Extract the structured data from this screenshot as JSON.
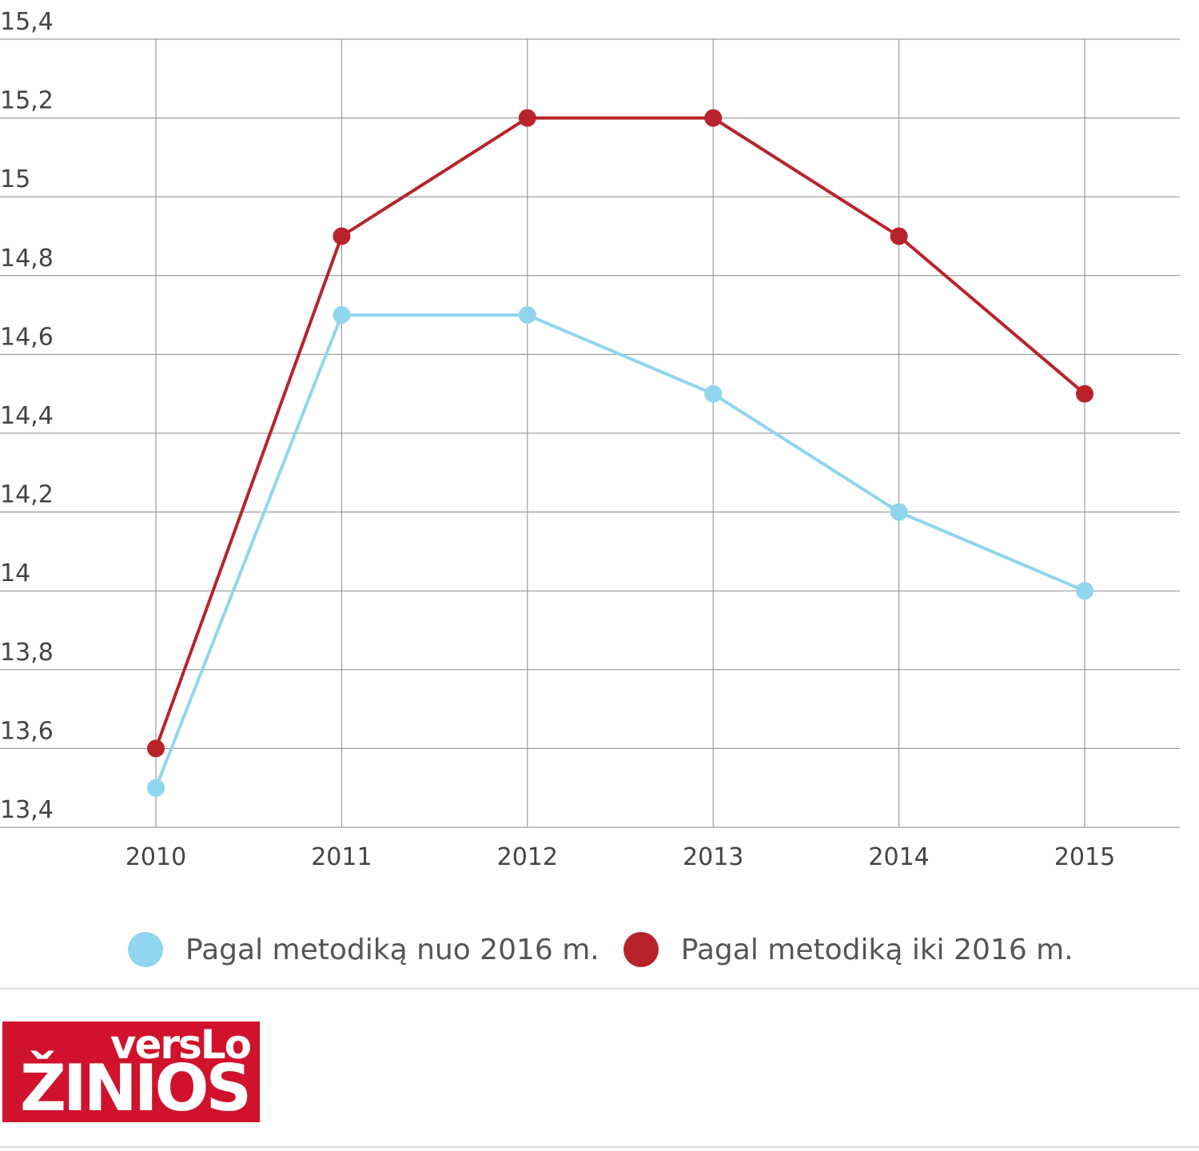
{
  "chart_data": {
    "type": "line",
    "categories": [
      "2010",
      "2011",
      "2012",
      "2013",
      "2014",
      "2015"
    ],
    "series": [
      {
        "name": "Pagal metodiką nuo 2016 m.",
        "color": "#8fd6ee",
        "values": [
          13.5,
          14.7,
          14.7,
          14.5,
          14.2,
          14.0
        ]
      },
      {
        "name": "Pagal metodiką iki 2016 m.",
        "color": "#b8232b",
        "values": [
          13.6,
          14.9,
          15.2,
          15.2,
          14.9,
          14.5
        ]
      }
    ],
    "ylim": [
      13.4,
      15.4
    ],
    "yticks": [
      "13,4",
      "13,6",
      "13,8",
      "14",
      "14,2",
      "14,4",
      "14,6",
      "14,8",
      "15",
      "15,2",
      "15,4"
    ],
    "grid": true,
    "legend_position": "bottom"
  },
  "logo": {
    "line1": "versLo",
    "line2": "ŽINIOS",
    "color": "#d0122c"
  }
}
